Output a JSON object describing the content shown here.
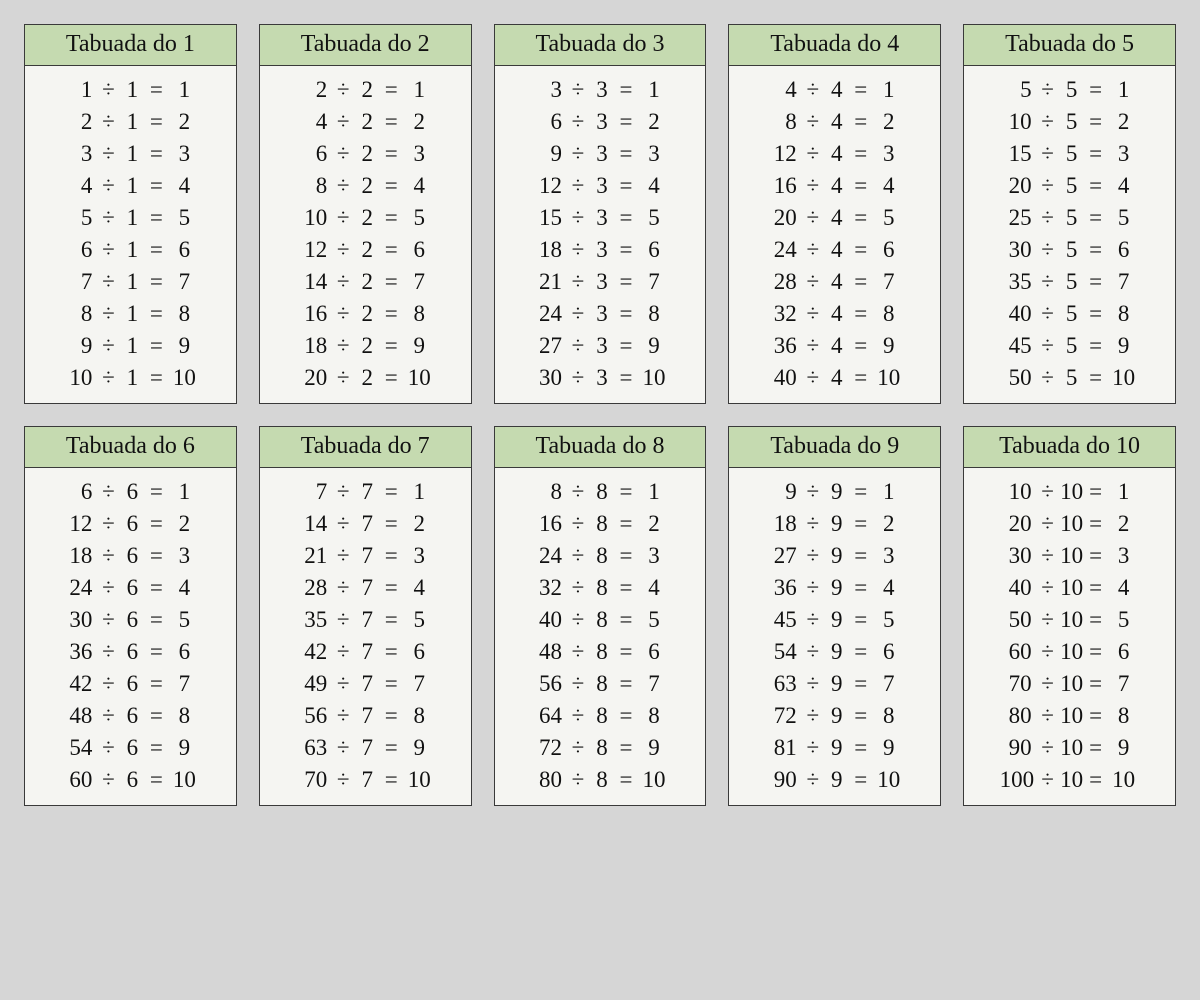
{
  "page": {
    "background_color": "#d6d6d6",
    "card_background": "#f5f5f2",
    "header_background": "#c5dab0",
    "border_color": "#3a3a3a",
    "text_color": "#111111",
    "font_family": "Georgia, serif",
    "header_fontsize_pt": 18,
    "row_fontsize_pt": 17,
    "grid_columns": 5,
    "grid_rows": 2,
    "operator_symbol": "÷",
    "equals_symbol": "="
  },
  "tables": [
    {
      "title": "Tabuada do 1",
      "divisor": 1,
      "rows": [
        [
          1,
          1,
          1
        ],
        [
          2,
          1,
          2
        ],
        [
          3,
          1,
          3
        ],
        [
          4,
          1,
          4
        ],
        [
          5,
          1,
          5
        ],
        [
          6,
          1,
          6
        ],
        [
          7,
          1,
          7
        ],
        [
          8,
          1,
          8
        ],
        [
          9,
          1,
          9
        ],
        [
          10,
          1,
          10
        ]
      ]
    },
    {
      "title": "Tabuada do 2",
      "divisor": 2,
      "rows": [
        [
          2,
          2,
          1
        ],
        [
          4,
          2,
          2
        ],
        [
          6,
          2,
          3
        ],
        [
          8,
          2,
          4
        ],
        [
          10,
          2,
          5
        ],
        [
          12,
          2,
          6
        ],
        [
          14,
          2,
          7
        ],
        [
          16,
          2,
          8
        ],
        [
          18,
          2,
          9
        ],
        [
          20,
          2,
          10
        ]
      ]
    },
    {
      "title": "Tabuada do 3",
      "divisor": 3,
      "rows": [
        [
          3,
          3,
          1
        ],
        [
          6,
          3,
          2
        ],
        [
          9,
          3,
          3
        ],
        [
          12,
          3,
          4
        ],
        [
          15,
          3,
          5
        ],
        [
          18,
          3,
          6
        ],
        [
          21,
          3,
          7
        ],
        [
          24,
          3,
          8
        ],
        [
          27,
          3,
          9
        ],
        [
          30,
          3,
          10
        ]
      ]
    },
    {
      "title": "Tabuada do 4",
      "divisor": 4,
      "rows": [
        [
          4,
          4,
          1
        ],
        [
          8,
          4,
          2
        ],
        [
          12,
          4,
          3
        ],
        [
          16,
          4,
          4
        ],
        [
          20,
          4,
          5
        ],
        [
          24,
          4,
          6
        ],
        [
          28,
          4,
          7
        ],
        [
          32,
          4,
          8
        ],
        [
          36,
          4,
          9
        ],
        [
          40,
          4,
          10
        ]
      ]
    },
    {
      "title": "Tabuada do 5",
      "divisor": 5,
      "rows": [
        [
          5,
          5,
          1
        ],
        [
          10,
          5,
          2
        ],
        [
          15,
          5,
          3
        ],
        [
          20,
          5,
          4
        ],
        [
          25,
          5,
          5
        ],
        [
          30,
          5,
          6
        ],
        [
          35,
          5,
          7
        ],
        [
          40,
          5,
          8
        ],
        [
          45,
          5,
          9
        ],
        [
          50,
          5,
          10
        ]
      ]
    },
    {
      "title": "Tabuada do 6",
      "divisor": 6,
      "rows": [
        [
          6,
          6,
          1
        ],
        [
          12,
          6,
          2
        ],
        [
          18,
          6,
          3
        ],
        [
          24,
          6,
          4
        ],
        [
          30,
          6,
          5
        ],
        [
          36,
          6,
          6
        ],
        [
          42,
          6,
          7
        ],
        [
          48,
          6,
          8
        ],
        [
          54,
          6,
          9
        ],
        [
          60,
          6,
          10
        ]
      ]
    },
    {
      "title": "Tabuada do 7",
      "divisor": 7,
      "rows": [
        [
          7,
          7,
          1
        ],
        [
          14,
          7,
          2
        ],
        [
          21,
          7,
          3
        ],
        [
          28,
          7,
          4
        ],
        [
          35,
          7,
          5
        ],
        [
          42,
          7,
          6
        ],
        [
          49,
          7,
          7
        ],
        [
          56,
          7,
          8
        ],
        [
          63,
          7,
          9
        ],
        [
          70,
          7,
          10
        ]
      ]
    },
    {
      "title": "Tabuada do 8",
      "divisor": 8,
      "rows": [
        [
          8,
          8,
          1
        ],
        [
          16,
          8,
          2
        ],
        [
          24,
          8,
          3
        ],
        [
          32,
          8,
          4
        ],
        [
          40,
          8,
          5
        ],
        [
          48,
          8,
          6
        ],
        [
          56,
          8,
          7
        ],
        [
          64,
          8,
          8
        ],
        [
          72,
          8,
          9
        ],
        [
          80,
          8,
          10
        ]
      ]
    },
    {
      "title": "Tabuada do 9",
      "divisor": 9,
      "rows": [
        [
          9,
          9,
          1
        ],
        [
          18,
          9,
          2
        ],
        [
          27,
          9,
          3
        ],
        [
          36,
          9,
          4
        ],
        [
          45,
          9,
          5
        ],
        [
          54,
          9,
          6
        ],
        [
          63,
          9,
          7
        ],
        [
          72,
          9,
          8
        ],
        [
          81,
          9,
          9
        ],
        [
          90,
          9,
          10
        ]
      ]
    },
    {
      "title": "Tabuada do 10",
      "divisor": 10,
      "rows": [
        [
          10,
          10,
          1
        ],
        [
          20,
          10,
          2
        ],
        [
          30,
          10,
          3
        ],
        [
          40,
          10,
          4
        ],
        [
          50,
          10,
          5
        ],
        [
          60,
          10,
          6
        ],
        [
          70,
          10,
          7
        ],
        [
          80,
          10,
          8
        ],
        [
          90,
          10,
          9
        ],
        [
          100,
          10,
          10
        ]
      ]
    }
  ]
}
